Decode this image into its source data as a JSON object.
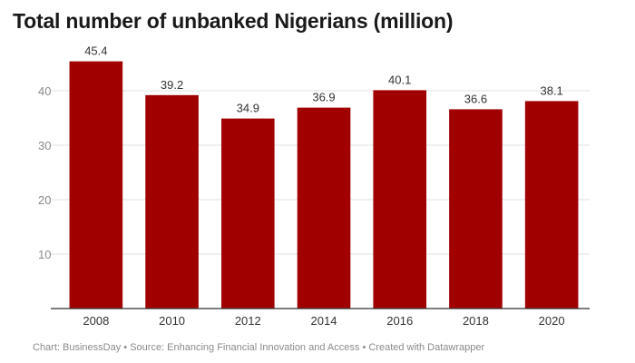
{
  "title": "Total number of unbanked Nigerians (million)",
  "footer": {
    "chart": "Chart: BusinessDay",
    "source": "Source: Enhancing Financial Innovation and Access",
    "created": "Created with Datawrapper",
    "separator": "•"
  },
  "colors": {
    "bar": "#a10000",
    "grid": "#e0e0e0",
    "axis": "#333333"
  },
  "chart_data": {
    "type": "bar",
    "title": "Total number of unbanked Nigerians (million)",
    "xlabel": "",
    "ylabel": "",
    "categories": [
      "2008",
      "2010",
      "2012",
      "2014",
      "2016",
      "2018",
      "2020"
    ],
    "values": [
      45.4,
      39.2,
      34.9,
      36.9,
      40.1,
      36.6,
      38.1
    ],
    "value_labels": [
      "45.4",
      "39.2",
      "34.9",
      "36.9",
      "40.1",
      "36.6",
      "38.1"
    ],
    "y_ticks": [
      10,
      20,
      30,
      40
    ],
    "ylim": [
      0,
      50
    ],
    "grid": true,
    "legend": "none"
  }
}
